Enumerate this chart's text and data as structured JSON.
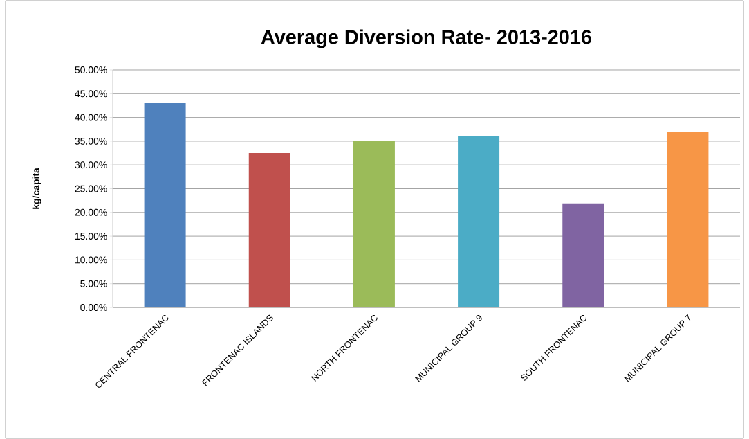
{
  "chart_data": {
    "type": "bar",
    "title": "Average Diversion Rate- 2013-2016",
    "ylabel": "kg/capita",
    "categories": [
      "CENTRAL FRONTENAC",
      "FRONTENAC ISLANDS",
      "NORTH FRONTENAC",
      "MUNICIPAL GROUP 9",
      "SOUTH FRONTENAC",
      "MUNICIPAL GROUP 7"
    ],
    "values": [
      43.0,
      32.5,
      35.0,
      36.0,
      21.9,
      36.9
    ],
    "colors": [
      "#4f81bd",
      "#c0504d",
      "#9bbb59",
      "#4bacc6",
      "#8064a2",
      "#f79646"
    ],
    "ylim": [
      0,
      50
    ],
    "yticks": [
      {
        "value": 0,
        "label": "0.00%"
      },
      {
        "value": 5,
        "label": "5.00%"
      },
      {
        "value": 10,
        "label": "10.00%"
      },
      {
        "value": 15,
        "label": "15.00%"
      },
      {
        "value": 20,
        "label": "20.00%"
      },
      {
        "value": 25,
        "label": "25.00%"
      },
      {
        "value": 30,
        "label": "30.00%"
      },
      {
        "value": 35,
        "label": "35.00%"
      },
      {
        "value": 40,
        "label": "40.00%"
      },
      {
        "value": 45,
        "label": "45.00%"
      },
      {
        "value": 50,
        "label": "50.00%"
      }
    ],
    "grid": "y"
  }
}
